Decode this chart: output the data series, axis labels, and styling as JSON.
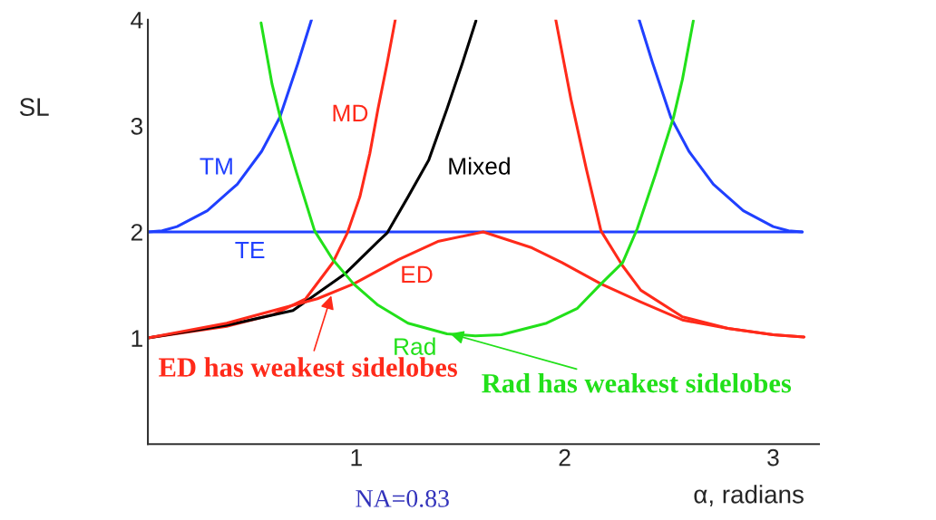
{
  "chart_data": {
    "type": "line",
    "ylabel": "SL",
    "xlabel": "α, radians",
    "xlim": [
      0,
      3.22
    ],
    "ylim": [
      0,
      4
    ],
    "xticks": [
      1,
      2,
      3
    ],
    "yticks": [
      1,
      2,
      3,
      4
    ],
    "series": [
      {
        "name": "TE",
        "color": "#2040ff",
        "x": [
          0,
          3.14
        ],
        "values": [
          2,
          2
        ]
      },
      {
        "name": "TM",
        "color": "#2040ff",
        "x": [
          0,
          0.068,
          0.14,
          0.285,
          0.429,
          0.546,
          0.633,
          0.72,
          0.785,
          1.57,
          2.357,
          2.422,
          2.509,
          2.596,
          2.713,
          2.857,
          3.0,
          3.074,
          3.14
        ],
        "values": [
          2,
          2.01,
          2.05,
          2.2,
          2.45,
          2.76,
          3.08,
          3.59,
          4.0,
          null,
          4.0,
          3.59,
          3.08,
          2.76,
          2.45,
          2.2,
          2.05,
          2.01,
          2.0
        ]
      },
      {
        "name": "MD",
        "color": "#ff2a1a",
        "x": [
          0,
          0.378,
          0.6,
          0.757,
          0.887,
          0.957,
          1.017,
          1.065,
          1.104,
          1.148,
          1.187,
          1.57,
          1.957,
          2.03,
          2.104,
          2.174,
          2.278,
          2.365,
          2.565,
          2.783,
          3.0,
          3.148
        ],
        "values": [
          1,
          1.11,
          1.22,
          1.37,
          1.71,
          1.99,
          2.33,
          2.74,
          3.16,
          3.59,
          4.0,
          null,
          4.0,
          3.25,
          2.59,
          2.01,
          1.68,
          1.45,
          1.2,
          1.09,
          1.03,
          1.01
        ]
      },
      {
        "name": "Mixed",
        "color": "#000000",
        "x": [
          0,
          0.378,
          0.696,
          0.943,
          1.104,
          1.148,
          1.248,
          1.348,
          1.435,
          1.509,
          1.574
        ],
        "values": [
          1,
          1.12,
          1.26,
          1.6,
          1.91,
          1.99,
          2.33,
          2.68,
          3.16,
          3.59,
          3.99
        ]
      },
      {
        "name": "ED",
        "color": "#ff2a1a",
        "x": [
          0,
          0.378,
          0.813,
          0.987,
          1.204,
          1.391,
          1.609,
          1.843,
          1.987,
          2.174,
          2.365,
          2.565,
          2.783,
          3.0,
          3.148
        ],
        "values": [
          1,
          1.14,
          1.37,
          1.51,
          1.74,
          1.91,
          2.0,
          1.85,
          1.71,
          1.51,
          1.34,
          1.17,
          1.09,
          1.03,
          1.01
        ]
      },
      {
        "name": "Rad",
        "color": "#22e01a",
        "x": [
          0.543,
          0.596,
          0.639,
          0.713,
          0.8,
          0.887,
          0.987,
          1.104,
          1.248,
          1.435,
          1.571,
          1.696,
          1.913,
          2.061,
          2.174,
          2.278,
          2.348,
          2.435,
          2.522,
          2.565,
          2.617
        ],
        "values": [
          3.97,
          3.39,
          3.05,
          2.56,
          2.01,
          1.74,
          1.51,
          1.31,
          1.14,
          1.04,
          1.02,
          1.03,
          1.14,
          1.28,
          1.51,
          1.71,
          2.03,
          2.54,
          3.08,
          3.44,
          3.99
        ]
      }
    ],
    "annotations": [
      {
        "text": "ED has weakest sidelobes",
        "x": 0.88,
        "y": 1.4
      },
      {
        "text": "Rad has weakest sidelobes",
        "x": 1.45,
        "y": 1.04
      },
      "NA=0.83"
    ]
  }
}
